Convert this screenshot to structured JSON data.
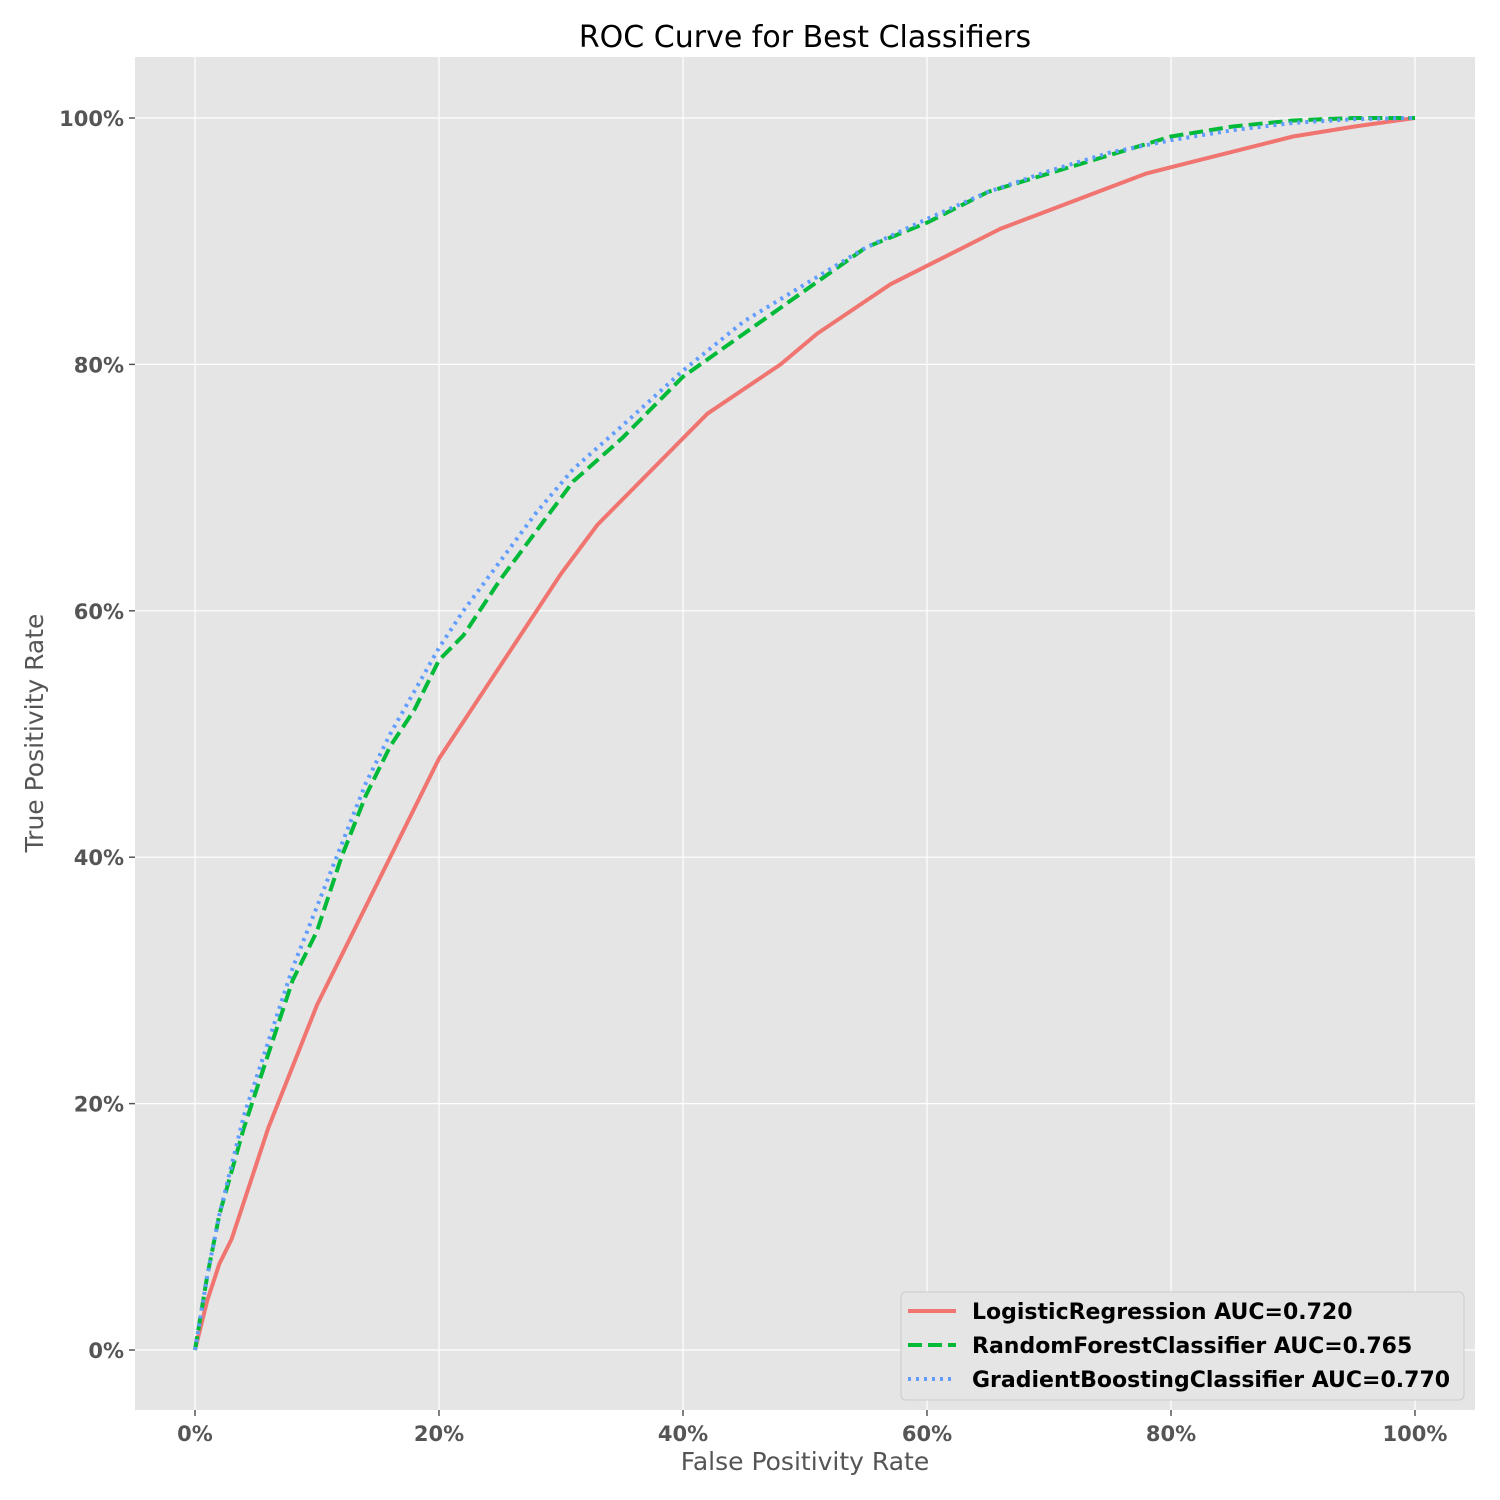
{
  "chart_data": {
    "type": "line",
    "title": "ROC Curve for Best Classifiers",
    "xlabel": "False Positivity Rate",
    "ylabel": "True Positivity Rate",
    "xlim": [
      -0.048,
      1.048
    ],
    "ylim": [
      -0.048,
      1.048
    ],
    "xticks": [
      0,
      0.2,
      0.4,
      0.6,
      0.8,
      1.0
    ],
    "yticks": [
      0,
      0.2,
      0.4,
      0.6,
      0.8,
      1.0
    ],
    "xtick_labels": [
      "0%",
      "20%",
      "40%",
      "60%",
      "80%",
      "100%"
    ],
    "ytick_labels": [
      "0%",
      "20%",
      "40%",
      "60%",
      "80%",
      "100%"
    ],
    "grid": true,
    "legend_position": "lower-right",
    "series": [
      {
        "name": "LogisticRegression AUC=0.720",
        "color": "#f07470",
        "style": "solid",
        "x": [
          0,
          0.01,
          0.02,
          0.03,
          0.04,
          0.05,
          0.06,
          0.08,
          0.1,
          0.12,
          0.14,
          0.16,
          0.18,
          0.2,
          0.22,
          0.24,
          0.26,
          0.28,
          0.3,
          0.33,
          0.36,
          0.39,
          0.42,
          0.45,
          0.48,
          0.51,
          0.54,
          0.57,
          0.6,
          0.63,
          0.66,
          0.7,
          0.74,
          0.78,
          0.82,
          0.86,
          0.9,
          0.95,
          1.0
        ],
        "y": [
          0,
          0.04,
          0.07,
          0.09,
          0.12,
          0.15,
          0.18,
          0.23,
          0.28,
          0.32,
          0.36,
          0.4,
          0.44,
          0.48,
          0.51,
          0.54,
          0.57,
          0.6,
          0.63,
          0.67,
          0.7,
          0.73,
          0.76,
          0.78,
          0.8,
          0.825,
          0.845,
          0.865,
          0.88,
          0.895,
          0.91,
          0.925,
          0.94,
          0.955,
          0.965,
          0.975,
          0.985,
          0.993,
          1.0
        ]
      },
      {
        "name": "RandomForestClassifier AUC=0.765",
        "color": "#00ba38",
        "style": "dashed",
        "x": [
          0,
          0.01,
          0.02,
          0.04,
          0.06,
          0.08,
          0.1,
          0.12,
          0.14,
          0.16,
          0.18,
          0.2,
          0.22,
          0.25,
          0.28,
          0.31,
          0.35,
          0.4,
          0.45,
          0.5,
          0.55,
          0.6,
          0.65,
          0.7,
          0.75,
          0.8,
          0.85,
          0.9,
          0.95,
          1.0
        ],
        "y": [
          0,
          0.06,
          0.11,
          0.18,
          0.24,
          0.3,
          0.34,
          0.4,
          0.45,
          0.49,
          0.52,
          0.56,
          0.58,
          0.625,
          0.665,
          0.705,
          0.74,
          0.79,
          0.825,
          0.86,
          0.895,
          0.915,
          0.94,
          0.955,
          0.97,
          0.985,
          0.993,
          0.998,
          1.0,
          1.0
        ]
      },
      {
        "name": "GradientBoostingClassifier AUC=0.770",
        "color": "#619cff",
        "style": "dotted",
        "x": [
          0,
          0.01,
          0.02,
          0.04,
          0.06,
          0.08,
          0.1,
          0.12,
          0.14,
          0.16,
          0.18,
          0.2,
          0.22,
          0.25,
          0.28,
          0.31,
          0.35,
          0.4,
          0.45,
          0.5,
          0.55,
          0.6,
          0.65,
          0.7,
          0.75,
          0.8,
          0.85,
          0.9,
          0.95,
          1.0
        ],
        "y": [
          0,
          0.06,
          0.11,
          0.19,
          0.25,
          0.31,
          0.36,
          0.41,
          0.46,
          0.5,
          0.535,
          0.57,
          0.6,
          0.64,
          0.68,
          0.715,
          0.75,
          0.795,
          0.835,
          0.865,
          0.895,
          0.918,
          0.94,
          0.957,
          0.972,
          0.982,
          0.99,
          0.996,
          0.999,
          1.0
        ]
      }
    ]
  }
}
